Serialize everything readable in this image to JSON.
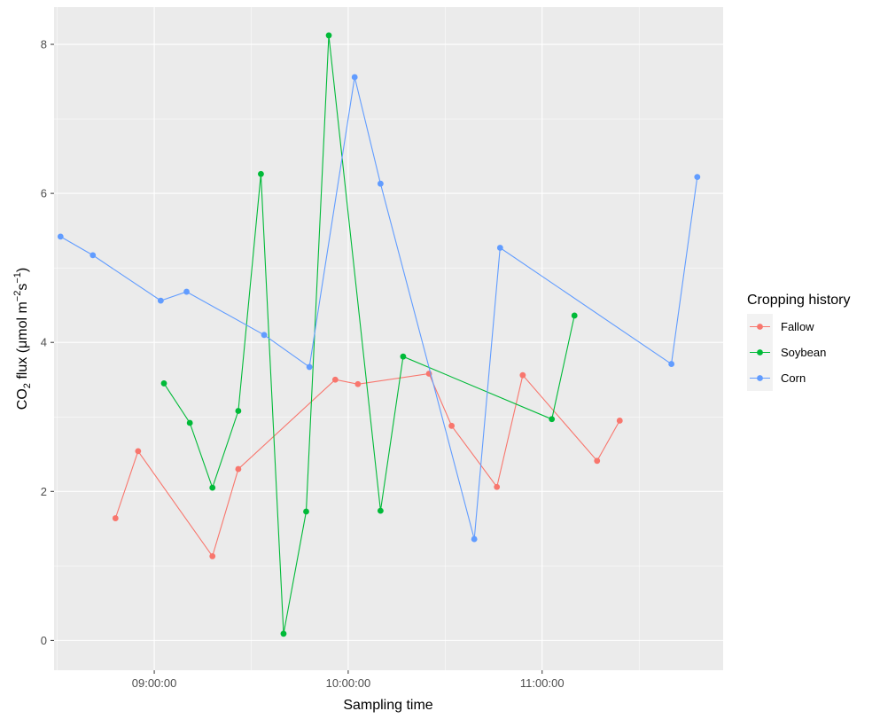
{
  "chart_data": {
    "type": "line",
    "xlabel": "Sampling time",
    "ylabel_prefix": "CO",
    "ylabel_sub": "2",
    "ylabel_mid": " flux (μmol m",
    "ylabel_sup1": "−2",
    "ylabel_s": "s",
    "ylabel_sup2": "−1",
    "ylabel_end": ")",
    "xlim": [
      "08:29:00",
      "11:56:00"
    ],
    "ylim": [
      -0.4,
      8.5
    ],
    "x_ticks": [
      "09:00:00",
      "10:00:00",
      "11:00:00"
    ],
    "y_ticks": [
      0,
      2,
      4,
      6,
      8
    ],
    "grid": true,
    "legend": {
      "title": "Cropping history",
      "position": "right"
    },
    "series": [
      {
        "name": "Fallow",
        "color": "#F8766D",
        "x": [
          "08:48:00",
          "08:55:00",
          "09:18:00",
          "09:26:00",
          "09:56:00",
          "10:03:00",
          "10:25:00",
          "10:32:00",
          "10:46:00",
          "10:54:00",
          "11:17:00",
          "11:24:00"
        ],
        "y": [
          1.64,
          2.54,
          1.13,
          2.3,
          3.5,
          3.44,
          3.58,
          2.88,
          2.06,
          3.56,
          2.41,
          2.95
        ]
      },
      {
        "name": "Soybean",
        "color": "#00BA38",
        "x": [
          "09:03:00",
          "09:11:00",
          "09:18:00",
          "09:26:00",
          "09:33:00",
          "09:40:00",
          "09:47:00",
          "09:54:00",
          "10:10:00",
          "10:17:00",
          "11:03:00",
          "11:10:00"
        ],
        "y": [
          3.45,
          2.92,
          2.05,
          3.08,
          6.26,
          0.09,
          1.73,
          8.12,
          1.74,
          3.81,
          2.97,
          4.36
        ]
      },
      {
        "name": "Corn",
        "color": "#619CFF",
        "x": [
          "08:31:00",
          "08:41:00",
          "09:02:00",
          "09:10:00",
          "09:34:00",
          "09:48:00",
          "10:02:00",
          "10:10:00",
          "10:39:00",
          "10:47:00",
          "11:40:00",
          "11:48:00"
        ],
        "y": [
          5.42,
          5.17,
          4.56,
          4.68,
          4.1,
          3.67,
          7.56,
          6.13,
          1.36,
          5.27,
          3.71,
          6.22
        ]
      }
    ]
  }
}
